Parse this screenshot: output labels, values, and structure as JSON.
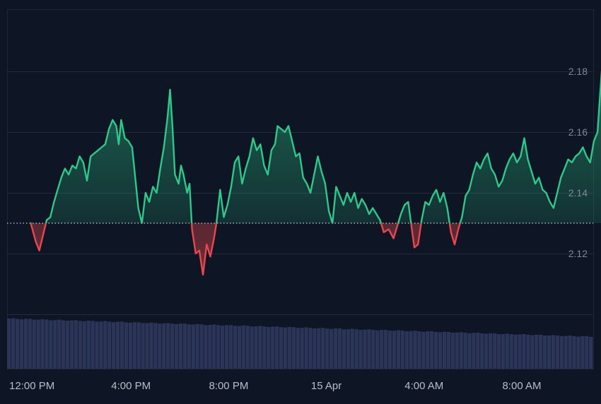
{
  "chart_data": {
    "type": "area",
    "title": "",
    "xlabel": "",
    "ylabel": "",
    "baseline": 2.13,
    "ylim": [
      2.105,
      2.19
    ],
    "y_ticks": [
      {
        "value": 2.12,
        "label": "2.12"
      },
      {
        "value": 2.14,
        "label": "2.14"
      },
      {
        "value": 2.16,
        "label": "2.16"
      },
      {
        "value": 2.18,
        "label": "2.18"
      }
    ],
    "x_tick_labels": [
      "12:00 PM",
      "4:00 PM",
      "8:00 PM",
      "15 Apr",
      "4:00 AM",
      "8:00 AM"
    ],
    "x_tick_hours": [
      0,
      4,
      8,
      12,
      16,
      20
    ],
    "x_range_hours": [
      -0.1,
      23.5
    ],
    "series": [
      {
        "color_up": "#2ec98a",
        "color_down": "#e5484d",
        "points": [
          [
            -0.1,
            2.13
          ],
          [
            0.1,
            2.124
          ],
          [
            0.25,
            2.121
          ],
          [
            0.4,
            2.126
          ],
          [
            0.55,
            2.131
          ],
          [
            0.7,
            2.132
          ],
          [
            0.85,
            2.137
          ],
          [
            1.0,
            2.141
          ],
          [
            1.15,
            2.145
          ],
          [
            1.3,
            2.148
          ],
          [
            1.45,
            2.146
          ],
          [
            1.6,
            2.149
          ],
          [
            1.75,
            2.148
          ],
          [
            1.9,
            2.152
          ],
          [
            2.05,
            2.15
          ],
          [
            2.2,
            2.144
          ],
          [
            2.35,
            2.152
          ],
          [
            2.5,
            2.153
          ],
          [
            2.65,
            2.154
          ],
          [
            2.8,
            2.155
          ],
          [
            2.95,
            2.156
          ],
          [
            3.1,
            2.161
          ],
          [
            3.25,
            2.164
          ],
          [
            3.4,
            2.162
          ],
          [
            3.5,
            2.156
          ],
          [
            3.6,
            2.164
          ],
          [
            3.75,
            2.158
          ],
          [
            3.9,
            2.157
          ],
          [
            4.05,
            2.155
          ],
          [
            4.15,
            2.147
          ],
          [
            4.3,
            2.135
          ],
          [
            4.45,
            2.13
          ],
          [
            4.6,
            2.14
          ],
          [
            4.75,
            2.137
          ],
          [
            4.9,
            2.142
          ],
          [
            5.05,
            2.14
          ],
          [
            5.2,
            2.148
          ],
          [
            5.35,
            2.155
          ],
          [
            5.5,
            2.165
          ],
          [
            5.6,
            2.174
          ],
          [
            5.7,
            2.162
          ],
          [
            5.8,
            2.146
          ],
          [
            5.95,
            2.143
          ],
          [
            6.05,
            2.149
          ],
          [
            6.15,
            2.146
          ],
          [
            6.3,
            2.14
          ],
          [
            6.4,
            2.143
          ],
          [
            6.5,
            2.128
          ],
          [
            6.65,
            2.12
          ],
          [
            6.8,
            2.121
          ],
          [
            6.95,
            2.113
          ],
          [
            7.1,
            2.123
          ],
          [
            7.25,
            2.119
          ],
          [
            7.4,
            2.125
          ],
          [
            7.5,
            2.13
          ],
          [
            7.65,
            2.141
          ],
          [
            7.8,
            2.132
          ],
          [
            7.95,
            2.136
          ],
          [
            8.1,
            2.142
          ],
          [
            8.25,
            2.15
          ],
          [
            8.4,
            2.152
          ],
          [
            8.55,
            2.143
          ],
          [
            8.7,
            2.148
          ],
          [
            8.85,
            2.152
          ],
          [
            9.0,
            2.158
          ],
          [
            9.15,
            2.154
          ],
          [
            9.3,
            2.156
          ],
          [
            9.45,
            2.149
          ],
          [
            9.6,
            2.146
          ],
          [
            9.75,
            2.154
          ],
          [
            9.9,
            2.156
          ],
          [
            10.0,
            2.162
          ],
          [
            10.15,
            2.161
          ],
          [
            10.3,
            2.16
          ],
          [
            10.45,
            2.162
          ],
          [
            10.6,
            2.157
          ],
          [
            10.75,
            2.152
          ],
          [
            10.9,
            2.153
          ],
          [
            11.05,
            2.145
          ],
          [
            11.2,
            2.143
          ],
          [
            11.35,
            2.14
          ],
          [
            11.5,
            2.146
          ],
          [
            11.65,
            2.152
          ],
          [
            11.8,
            2.147
          ],
          [
            11.95,
            2.143
          ],
          [
            12.1,
            2.134
          ],
          [
            12.25,
            2.13
          ],
          [
            12.4,
            2.142
          ],
          [
            12.55,
            2.139
          ],
          [
            12.7,
            2.136
          ],
          [
            12.85,
            2.14
          ],
          [
            13.0,
            2.137
          ],
          [
            13.15,
            2.14
          ],
          [
            13.3,
            2.135
          ],
          [
            13.45,
            2.138
          ],
          [
            13.6,
            2.136
          ],
          [
            13.75,
            2.133
          ],
          [
            13.9,
            2.135
          ],
          [
            14.05,
            2.133
          ],
          [
            14.2,
            2.131
          ],
          [
            14.35,
            2.127
          ],
          [
            14.55,
            2.128
          ],
          [
            14.75,
            2.125
          ],
          [
            14.9,
            2.129
          ],
          [
            15.05,
            2.133
          ],
          [
            15.2,
            2.136
          ],
          [
            15.35,
            2.137
          ],
          [
            15.5,
            2.128
          ],
          [
            15.6,
            2.122
          ],
          [
            15.75,
            2.123
          ],
          [
            15.9,
            2.131
          ],
          [
            16.05,
            2.137
          ],
          [
            16.2,
            2.136
          ],
          [
            16.35,
            2.139
          ],
          [
            16.5,
            2.141
          ],
          [
            16.65,
            2.137
          ],
          [
            16.8,
            2.14
          ],
          [
            16.95,
            2.135
          ],
          [
            17.1,
            2.127
          ],
          [
            17.25,
            2.123
          ],
          [
            17.4,
            2.128
          ],
          [
            17.55,
            2.132
          ],
          [
            17.7,
            2.139
          ],
          [
            17.85,
            2.141
          ],
          [
            18.0,
            2.146
          ],
          [
            18.15,
            2.15
          ],
          [
            18.3,
            2.148
          ],
          [
            18.45,
            2.151
          ],
          [
            18.6,
            2.153
          ],
          [
            18.75,
            2.148
          ],
          [
            18.9,
            2.146
          ],
          [
            19.05,
            2.142
          ],
          [
            19.2,
            2.144
          ],
          [
            19.35,
            2.148
          ],
          [
            19.5,
            2.151
          ],
          [
            19.65,
            2.153
          ],
          [
            19.8,
            2.15
          ],
          [
            19.95,
            2.152
          ],
          [
            20.1,
            2.158
          ],
          [
            20.25,
            2.151
          ],
          [
            20.4,
            2.147
          ],
          [
            20.55,
            2.143
          ],
          [
            20.7,
            2.145
          ],
          [
            20.85,
            2.141
          ],
          [
            21.0,
            2.14
          ],
          [
            21.15,
            2.137
          ],
          [
            21.3,
            2.135
          ],
          [
            21.45,
            2.14
          ],
          [
            21.6,
            2.145
          ],
          [
            21.75,
            2.148
          ],
          [
            21.9,
            2.151
          ],
          [
            22.05,
            2.15
          ],
          [
            22.2,
            2.152
          ],
          [
            22.35,
            2.153
          ],
          [
            22.5,
            2.155
          ],
          [
            22.65,
            2.152
          ],
          [
            22.8,
            2.15
          ],
          [
            22.95,
            2.157
          ],
          [
            23.1,
            2.16
          ],
          [
            23.2,
            2.172
          ],
          [
            23.27,
            2.18
          ],
          [
            23.35,
            2.175
          ],
          [
            23.42,
            2.177
          ],
          [
            23.5,
            2.17
          ]
        ]
      }
    ],
    "volume": {
      "color": "#2a3558",
      "bar_count": 140,
      "start": 1.0,
      "end": 0.64
    }
  }
}
